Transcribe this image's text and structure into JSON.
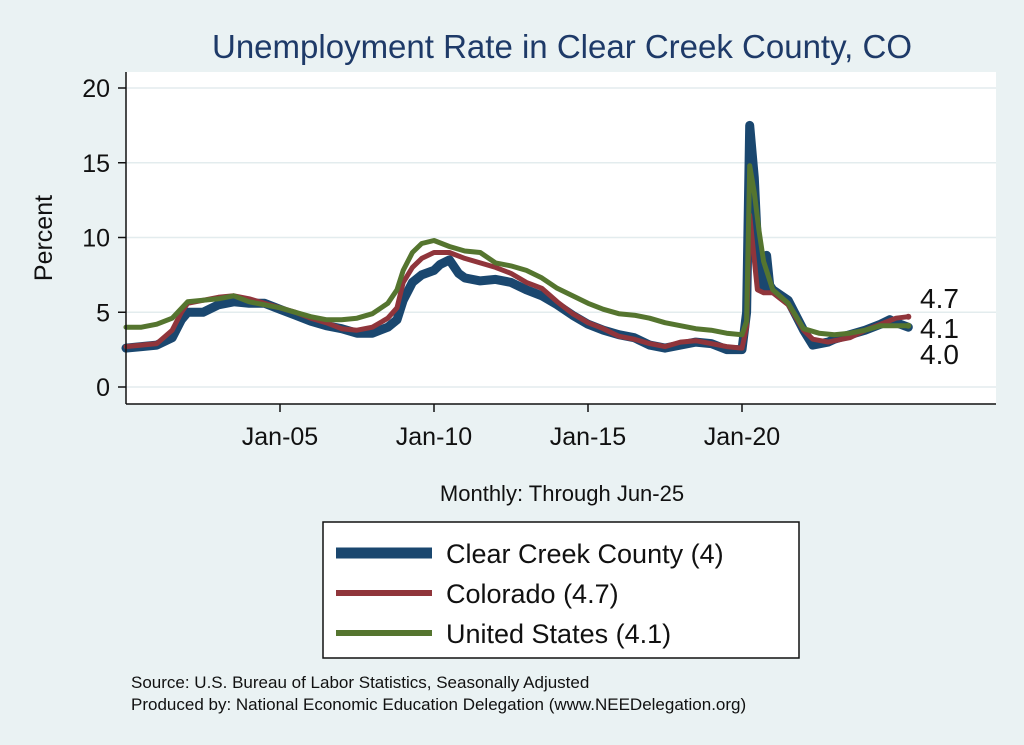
{
  "chart_data": {
    "type": "line",
    "title": "Unemployment Rate in Clear Creek  County, CO",
    "ylabel": "Percent",
    "xlabel": "Monthly: Through Jun-25",
    "ylim": [
      0,
      20
    ],
    "yticks": [
      0,
      5,
      10,
      15,
      20
    ],
    "xlim": [
      2000,
      2025.5
    ],
    "xticks": [
      {
        "x": 2005,
        "label": "Jan-05"
      },
      {
        "x": 2010,
        "label": "Jan-10"
      },
      {
        "x": 2015,
        "label": "Jan-15"
      },
      {
        "x": 2020,
        "label": "Jan-20"
      }
    ],
    "grid": true,
    "legend_position": "bottom",
    "series": [
      {
        "name": "Clear Creek  County (4)",
        "color": "#1a476f",
        "width": 9,
        "end_label": "4.0",
        "points": [
          [
            2000.0,
            2.6
          ],
          [
            2000.5,
            2.7
          ],
          [
            2001.0,
            2.8
          ],
          [
            2001.5,
            3.3
          ],
          [
            2001.8,
            4.5
          ],
          [
            2002.0,
            5.0
          ],
          [
            2002.5,
            5.0
          ],
          [
            2003.0,
            5.5
          ],
          [
            2003.5,
            5.7
          ],
          [
            2004.0,
            5.6
          ],
          [
            2004.5,
            5.6
          ],
          [
            2005.0,
            5.2
          ],
          [
            2005.5,
            4.8
          ],
          [
            2006.0,
            4.4
          ],
          [
            2006.5,
            4.1
          ],
          [
            2007.0,
            3.9
          ],
          [
            2007.5,
            3.6
          ],
          [
            2008.0,
            3.6
          ],
          [
            2008.5,
            4.0
          ],
          [
            2008.8,
            4.5
          ],
          [
            2009.0,
            5.8
          ],
          [
            2009.3,
            7.0
          ],
          [
            2009.6,
            7.5
          ],
          [
            2010.0,
            7.8
          ],
          [
            2010.2,
            8.2
          ],
          [
            2010.5,
            8.5
          ],
          [
            2010.8,
            7.6
          ],
          [
            2011.0,
            7.3
          ],
          [
            2011.5,
            7.1
          ],
          [
            2012.0,
            7.2
          ],
          [
            2012.5,
            7.0
          ],
          [
            2013.0,
            6.5
          ],
          [
            2013.5,
            6.1
          ],
          [
            2014.0,
            5.5
          ],
          [
            2014.5,
            4.8
          ],
          [
            2015.0,
            4.2
          ],
          [
            2015.5,
            3.8
          ],
          [
            2016.0,
            3.5
          ],
          [
            2016.5,
            3.3
          ],
          [
            2017.0,
            2.8
          ],
          [
            2017.5,
            2.6
          ],
          [
            2018.0,
            2.8
          ],
          [
            2018.5,
            3.0
          ],
          [
            2019.0,
            2.9
          ],
          [
            2019.5,
            2.5
          ],
          [
            2020.0,
            2.5
          ],
          [
            2020.15,
            5.0
          ],
          [
            2020.25,
            17.5
          ],
          [
            2020.4,
            14.0
          ],
          [
            2020.55,
            7.5
          ],
          [
            2020.7,
            6.5
          ],
          [
            2020.8,
            8.8
          ],
          [
            2020.9,
            6.8
          ],
          [
            2021.0,
            6.5
          ],
          [
            2021.5,
            5.8
          ],
          [
            2022.0,
            3.8
          ],
          [
            2022.3,
            2.8
          ],
          [
            2022.8,
            3.0
          ],
          [
            2023.0,
            3.2
          ],
          [
            2023.5,
            3.5
          ],
          [
            2024.0,
            3.8
          ],
          [
            2024.5,
            4.2
          ],
          [
            2024.8,
            4.5
          ],
          [
            2025.0,
            4.3
          ],
          [
            2025.4,
            4.0
          ]
        ]
      },
      {
        "name": "Colorado (4.7)",
        "color": "#90353b",
        "width": 5,
        "end_label": "4.7",
        "points": [
          [
            2000.0,
            2.7
          ],
          [
            2000.5,
            2.8
          ],
          [
            2001.0,
            2.9
          ],
          [
            2001.5,
            3.8
          ],
          [
            2001.8,
            5.0
          ],
          [
            2002.0,
            5.6
          ],
          [
            2002.5,
            5.8
          ],
          [
            2003.0,
            6.0
          ],
          [
            2003.5,
            6.1
          ],
          [
            2004.0,
            5.9
          ],
          [
            2004.5,
            5.6
          ],
          [
            2005.0,
            5.3
          ],
          [
            2005.5,
            5.0
          ],
          [
            2006.0,
            4.6
          ],
          [
            2006.5,
            4.3
          ],
          [
            2007.0,
            3.9
          ],
          [
            2007.5,
            3.8
          ],
          [
            2008.0,
            4.0
          ],
          [
            2008.5,
            4.6
          ],
          [
            2008.8,
            5.3
          ],
          [
            2009.0,
            7.0
          ],
          [
            2009.3,
            8.0
          ],
          [
            2009.6,
            8.6
          ],
          [
            2010.0,
            9.0
          ],
          [
            2010.5,
            9.0
          ],
          [
            2011.0,
            8.6
          ],
          [
            2011.5,
            8.3
          ],
          [
            2012.0,
            8.0
          ],
          [
            2012.5,
            7.6
          ],
          [
            2013.0,
            7.0
          ],
          [
            2013.5,
            6.6
          ],
          [
            2014.0,
            5.7
          ],
          [
            2014.5,
            4.9
          ],
          [
            2015.0,
            4.3
          ],
          [
            2015.5,
            3.9
          ],
          [
            2016.0,
            3.4
          ],
          [
            2016.5,
            3.2
          ],
          [
            2017.0,
            2.9
          ],
          [
            2017.5,
            2.7
          ],
          [
            2018.0,
            3.0
          ],
          [
            2018.5,
            3.1
          ],
          [
            2019.0,
            2.9
          ],
          [
            2019.5,
            2.7
          ],
          [
            2020.0,
            2.6
          ],
          [
            2020.15,
            4.0
          ],
          [
            2020.25,
            11.5
          ],
          [
            2020.5,
            6.5
          ],
          [
            2020.7,
            6.3
          ],
          [
            2021.0,
            6.3
          ],
          [
            2021.5,
            5.5
          ],
          [
            2022.0,
            3.8
          ],
          [
            2022.3,
            3.2
          ],
          [
            2022.8,
            3.0
          ],
          [
            2023.0,
            3.1
          ],
          [
            2023.5,
            3.3
          ],
          [
            2024.0,
            3.8
          ],
          [
            2024.5,
            4.2
          ],
          [
            2025.0,
            4.6
          ],
          [
            2025.4,
            4.7
          ]
        ]
      },
      {
        "name": "United States (4.1)",
        "color": "#55752f",
        "width": 5,
        "end_label": "4.1",
        "points": [
          [
            2000.0,
            4.0
          ],
          [
            2000.5,
            4.0
          ],
          [
            2001.0,
            4.2
          ],
          [
            2001.5,
            4.6
          ],
          [
            2002.0,
            5.7
          ],
          [
            2002.5,
            5.8
          ],
          [
            2003.0,
            5.9
          ],
          [
            2003.5,
            6.1
          ],
          [
            2004.0,
            5.7
          ],
          [
            2004.5,
            5.5
          ],
          [
            2005.0,
            5.3
          ],
          [
            2005.5,
            5.0
          ],
          [
            2006.0,
            4.7
          ],
          [
            2006.5,
            4.5
          ],
          [
            2007.0,
            4.5
          ],
          [
            2007.5,
            4.6
          ],
          [
            2008.0,
            4.9
          ],
          [
            2008.5,
            5.6
          ],
          [
            2008.8,
            6.5
          ],
          [
            2009.0,
            7.8
          ],
          [
            2009.3,
            9.0
          ],
          [
            2009.6,
            9.6
          ],
          [
            2010.0,
            9.8
          ],
          [
            2010.5,
            9.4
          ],
          [
            2011.0,
            9.1
          ],
          [
            2011.5,
            9.0
          ],
          [
            2012.0,
            8.3
          ],
          [
            2012.5,
            8.1
          ],
          [
            2013.0,
            7.8
          ],
          [
            2013.5,
            7.3
          ],
          [
            2014.0,
            6.6
          ],
          [
            2014.5,
            6.1
          ],
          [
            2015.0,
            5.6
          ],
          [
            2015.5,
            5.2
          ],
          [
            2016.0,
            4.9
          ],
          [
            2016.5,
            4.8
          ],
          [
            2017.0,
            4.6
          ],
          [
            2017.5,
            4.3
          ],
          [
            2018.0,
            4.1
          ],
          [
            2018.5,
            3.9
          ],
          [
            2019.0,
            3.8
          ],
          [
            2019.5,
            3.6
          ],
          [
            2020.0,
            3.5
          ],
          [
            2020.15,
            4.4
          ],
          [
            2020.25,
            14.8
          ],
          [
            2020.4,
            13.0
          ],
          [
            2020.55,
            10.5
          ],
          [
            2020.7,
            8.4
          ],
          [
            2021.0,
            6.5
          ],
          [
            2021.5,
            5.6
          ],
          [
            2022.0,
            3.9
          ],
          [
            2022.5,
            3.6
          ],
          [
            2023.0,
            3.5
          ],
          [
            2023.5,
            3.6
          ],
          [
            2024.0,
            3.8
          ],
          [
            2024.5,
            4.1
          ],
          [
            2025.0,
            4.1
          ],
          [
            2025.4,
            4.1
          ]
        ]
      }
    ]
  },
  "footer": {
    "source": "Source: U.S. Bureau of Labor Statistics, Seasonally Adjusted",
    "produced_by": "Produced by: National Economic Education Delegation (www.NEEDelegation.org)"
  }
}
